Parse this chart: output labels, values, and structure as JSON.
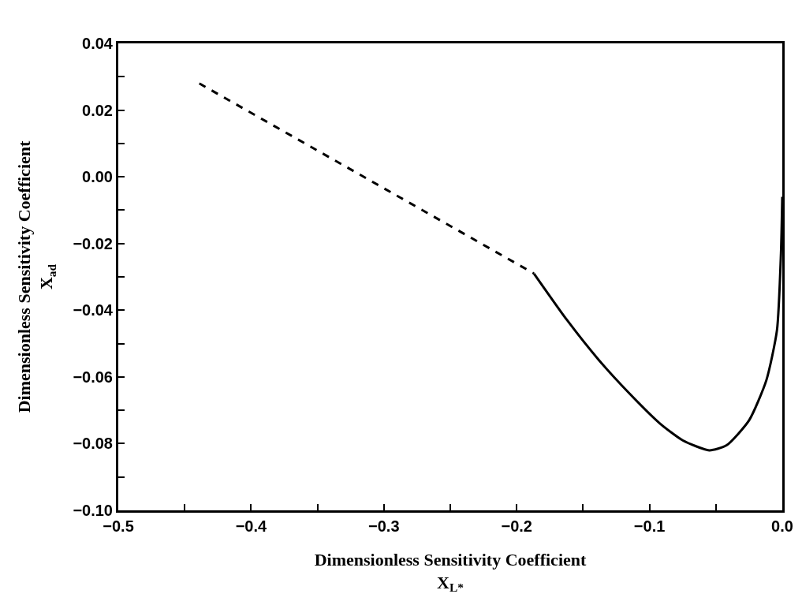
{
  "chart_data": {
    "type": "line",
    "xlabel": "Dimensionless Sensitivity Coefficient\nX$_{L*}$",
    "ylabel": "Dimensionless Sensitivity Coefficient\nX$_{ad}$",
    "series": [
      {
        "color": "#000000",
        "line_style": "dashed",
        "x": [
          -0.439,
          -0.187
        ],
        "values": [
          0.028,
          -0.029
        ]
      },
      {
        "color": "#000000",
        "line_style": "solid",
        "x": [
          -0.187,
          -0.162,
          -0.138,
          -0.115,
          -0.092,
          -0.075,
          -0.055,
          -0.042,
          -0.025,
          -0.012,
          -0.004,
          -0.001,
          0.0
        ],
        "values": [
          -0.029,
          -0.043,
          -0.055,
          -0.065,
          -0.074,
          -0.079,
          -0.082,
          -0.0805,
          -0.073,
          -0.061,
          -0.046,
          -0.023,
          -0.006
        ]
      }
    ],
    "xlim": [
      -0.5,
      0.0
    ],
    "xticks": [
      -0.5,
      {
        "value": -0.45,
        "label": null
      },
      -0.4,
      {
        "value": -0.35,
        "label": null
      },
      -0.3,
      {
        "value": -0.25,
        "label": null
      },
      -0.2,
      {
        "value": -0.15,
        "label": null
      },
      -0.1,
      {
        "value": -0.05,
        "label": null
      },
      {
        "value": 0.0,
        "label": "0.0"
      }
    ],
    "ylim": [
      -0.1,
      0.04
    ],
    "yticks": [
      {
        "value": -0.1,
        "label": "−0.10"
      },
      {
        "value": -0.09,
        "label": null
      },
      -0.08,
      {
        "value": -0.07,
        "label": null
      },
      -0.06,
      {
        "value": -0.05,
        "label": null
      },
      -0.04,
      {
        "value": -0.03,
        "label": null
      },
      -0.02,
      {
        "value": -0.01,
        "label": null
      },
      {
        "value": 0.0,
        "label": "0.00"
      },
      {
        "value": 0.01,
        "label": null
      },
      0.02,
      {
        "value": 0.03,
        "label": null
      },
      0.04
    ]
  }
}
